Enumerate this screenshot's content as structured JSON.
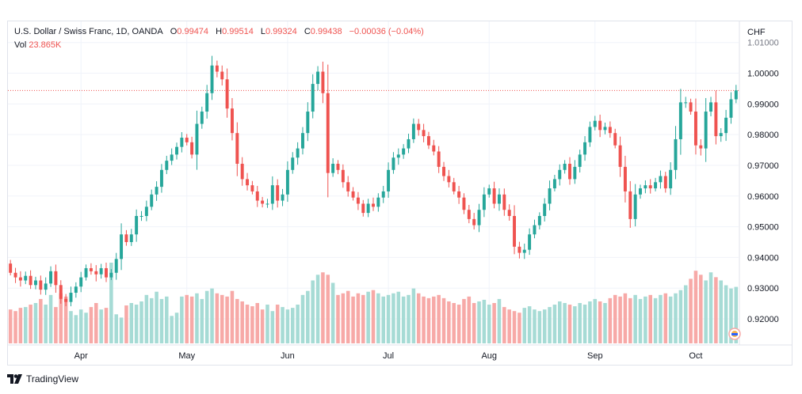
{
  "legend": {
    "symbol": "U.S. Dollar / Swiss Franc, 1D, OANDA",
    "o_label": "O",
    "o_value": "0.99474",
    "h_label": "H",
    "h_value": "0.99514",
    "l_label": "L",
    "l_value": "0.99324",
    "c_label": "C",
    "c_value": "0.99438",
    "change": "−0.00036 (−0.04%)",
    "vol_label": "Vol",
    "vol_value": "23.865K"
  },
  "brand": {
    "name": "TradingView"
  },
  "colors": {
    "up": "#26a69a",
    "down": "#ef5350",
    "vol_up": "#a6dbd5",
    "vol_down": "#f7a9a7",
    "grid": "#f0f3fa",
    "price_line": "#ef5350"
  },
  "chart_data": {
    "type": "candlestick",
    "title": "U.S. Dollar / Swiss Franc, 1D, OANDA",
    "currency_label": "CHF",
    "y_ticks": [
      "1.01000",
      "1.00000",
      "0.99000",
      "0.98000",
      "0.97000",
      "0.96000",
      "0.95000",
      "0.94000",
      "0.93000",
      "0.92000"
    ],
    "y_tick_values": [
      1.01,
      1.0,
      0.99,
      0.98,
      0.97,
      0.96,
      0.95,
      0.94,
      0.93,
      0.92
    ],
    "ylim": [
      0.9115,
      1.0125
    ],
    "last_close": 0.99438,
    "x_months": [
      {
        "label": "Apr",
        "index": 14
      },
      {
        "label": "May",
        "index": 35
      },
      {
        "label": "Jun",
        "index": 55
      },
      {
        "label": "Jul",
        "index": 75
      },
      {
        "label": "Aug",
        "index": 95
      },
      {
        "label": "Sep",
        "index": 116
      },
      {
        "label": "Oct",
        "index": 136
      }
    ],
    "closes": [
      0.935,
      0.9335,
      0.9325,
      0.934,
      0.931,
      0.9325,
      0.9295,
      0.9315,
      0.9355,
      0.931,
      0.9265,
      0.9255,
      0.9285,
      0.9305,
      0.9335,
      0.9365,
      0.9355,
      0.9345,
      0.9365,
      0.9335,
      0.935,
      0.9395,
      0.9475,
      0.945,
      0.9475,
      0.9535,
      0.9535,
      0.9565,
      0.9605,
      0.963,
      0.9685,
      0.9715,
      0.9735,
      0.976,
      0.979,
      0.9775,
      0.9735,
      0.9835,
      0.9875,
      0.9935,
      1.0025,
      1.0005,
      0.998,
      0.9885,
      0.9805,
      0.9705,
      0.9655,
      0.9635,
      0.9615,
      0.9585,
      0.9575,
      0.9575,
      0.9635,
      0.9585,
      0.9605,
      0.9685,
      0.9725,
      0.9755,
      0.9805,
      0.9875,
      0.9965,
      1.0005,
      0.9935,
      0.9675,
      0.9705,
      0.9685,
      0.9645,
      0.9615,
      0.9595,
      0.9575,
      0.9545,
      0.9575,
      0.9565,
      0.9595,
      0.9615,
      0.9685,
      0.9725,
      0.9735,
      0.9755,
      0.9785,
      0.9835,
      0.9815,
      0.9795,
      0.9765,
      0.9745,
      0.9695,
      0.9665,
      0.9645,
      0.9615,
      0.9595,
      0.9555,
      0.9525,
      0.9505,
      0.9555,
      0.9605,
      0.9625,
      0.9575,
      0.9605,
      0.9555,
      0.9535,
      0.9435,
      0.9415,
      0.9425,
      0.9475,
      0.9505,
      0.9535,
      0.9575,
      0.9625,
      0.9655,
      0.9685,
      0.9705,
      0.9655,
      0.9695,
      0.9735,
      0.9775,
      0.9825,
      0.9845,
      0.9815,
      0.9825,
      0.9805,
      0.9765,
      0.9695,
      0.9615,
      0.9525,
      0.9605,
      0.9625,
      0.9635,
      0.9625,
      0.9645,
      0.9665,
      0.9625,
      0.9685,
      0.9785,
      0.9905,
      0.9905,
      0.9875,
      0.9765,
      0.9755,
      0.9875,
      0.9905,
      0.9795,
      0.9805,
      0.9855,
      0.9915,
      0.9944
    ],
    "volumes_relative": [
      0.42,
      0.4,
      0.44,
      0.45,
      0.48,
      0.5,
      0.55,
      0.48,
      0.6,
      0.45,
      0.62,
      0.58,
      0.4,
      0.35,
      0.42,
      0.38,
      0.45,
      0.5,
      0.42,
      0.44,
      1.0,
      0.36,
      0.32,
      0.47,
      0.5,
      0.48,
      0.52,
      0.6,
      0.56,
      0.64,
      0.55,
      0.58,
      0.34,
      0.38,
      0.58,
      0.6,
      0.58,
      0.62,
      0.55,
      0.65,
      0.68,
      0.62,
      0.6,
      0.58,
      0.65,
      0.55,
      0.52,
      0.48,
      0.46,
      0.5,
      0.42,
      0.48,
      0.4,
      0.48,
      0.45,
      0.42,
      0.44,
      0.48,
      0.6,
      0.65,
      0.78,
      0.85,
      0.88,
      0.85,
      0.75,
      0.6,
      0.62,
      0.65,
      0.58,
      0.62,
      0.6,
      0.64,
      0.66,
      0.62,
      0.58,
      0.6,
      0.62,
      0.64,
      0.58,
      0.6,
      0.68,
      0.62,
      0.58,
      0.56,
      0.58,
      0.6,
      0.56,
      0.52,
      0.5,
      0.48,
      0.55,
      0.58,
      0.5,
      0.52,
      0.54,
      0.48,
      0.5,
      0.55,
      0.45,
      0.42,
      0.4,
      0.38,
      0.44,
      0.46,
      0.42,
      0.4,
      0.42,
      0.45,
      0.48,
      0.52,
      0.5,
      0.48,
      0.46,
      0.5,
      0.48,
      0.52,
      0.55,
      0.52,
      0.5,
      0.56,
      0.6,
      0.58,
      0.62,
      0.56,
      0.6,
      0.55,
      0.58,
      0.6,
      0.56,
      0.6,
      0.62,
      0.58,
      0.62,
      0.66,
      0.72,
      0.8,
      0.9,
      0.85,
      0.78,
      0.88,
      0.82,
      0.78,
      0.72,
      0.68,
      0.7,
      0.66
    ]
  }
}
